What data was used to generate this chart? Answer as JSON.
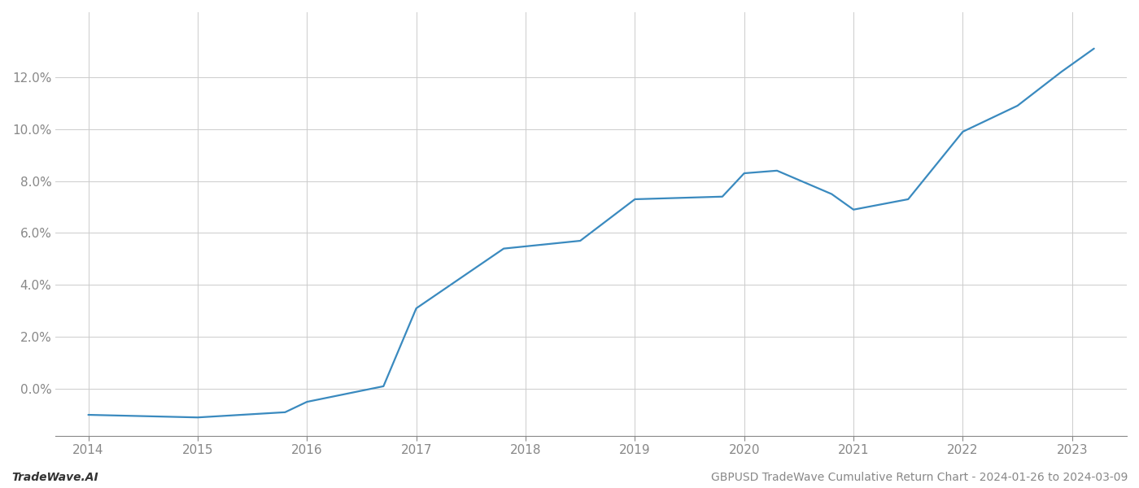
{
  "title": "",
  "footer_left": "TradeWave.AI",
  "footer_right": "GBPUSD TradeWave Cumulative Return Chart - 2024-01-26 to 2024-03-09",
  "line_color": "#3a8abf",
  "background_color": "#ffffff",
  "grid_color": "#cccccc",
  "x_values": [
    2014.0,
    2015.0,
    2015.8,
    2016.0,
    2016.7,
    2017.0,
    2017.8,
    2018.5,
    2019.0,
    2019.8,
    2020.0,
    2020.3,
    2020.8,
    2021.0,
    2021.5,
    2022.0,
    2022.5,
    2022.9,
    2023.2
  ],
  "y_values": [
    -0.01,
    -0.011,
    -0.009,
    -0.005,
    0.001,
    0.031,
    0.054,
    0.057,
    0.073,
    0.074,
    0.083,
    0.084,
    0.075,
    0.069,
    0.073,
    0.099,
    0.109,
    0.122,
    0.131
  ],
  "xlim": [
    2013.7,
    2023.5
  ],
  "ylim": [
    -0.018,
    0.145
  ],
  "yticks": [
    0.0,
    0.02,
    0.04,
    0.06,
    0.08,
    0.1,
    0.12
  ],
  "xticks": [
    2014,
    2015,
    2016,
    2017,
    2018,
    2019,
    2020,
    2021,
    2022,
    2023
  ],
  "line_width": 1.6,
  "footer_fontsize": 10,
  "tick_fontsize": 11,
  "axis_color": "#888888",
  "spine_color": "#888888"
}
